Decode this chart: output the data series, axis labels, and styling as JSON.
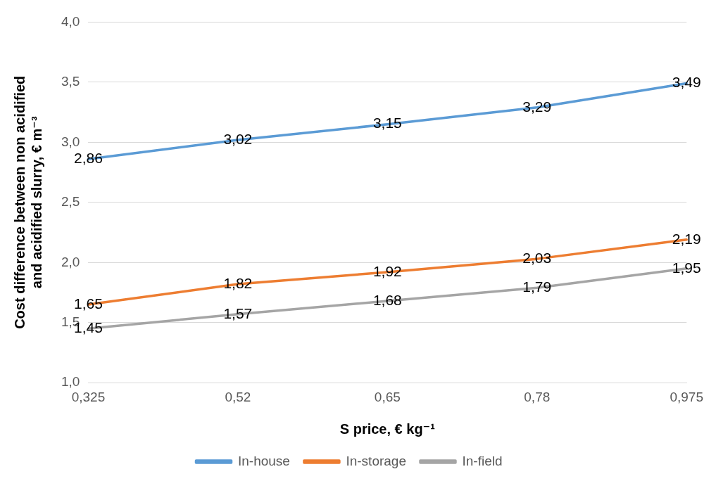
{
  "chart_data": {
    "type": "line",
    "xlabel": "S price, € kg⁻¹",
    "ylabel": "Cost difference between non acidified and acidified slurry, € m⁻³",
    "categories": [
      "0,325",
      "0,52",
      "0,65",
      "0,78",
      "0,975"
    ],
    "series": [
      {
        "name": "In-house",
        "color": "#5b9bd5",
        "values": [
          2.86,
          3.02,
          3.15,
          3.29,
          3.49
        ],
        "value_labels": [
          "2,86",
          "3,02",
          "3,15",
          "3,29",
          "3,49"
        ]
      },
      {
        "name": "In-storage",
        "color": "#ed7d31",
        "values": [
          1.65,
          1.82,
          1.92,
          2.03,
          2.19
        ],
        "value_labels": [
          "1,65",
          "1,82",
          "1,92",
          "2,03",
          "2,19"
        ]
      },
      {
        "name": "In-field",
        "color": "#a5a5a5",
        "values": [
          1.45,
          1.57,
          1.68,
          1.79,
          1.95
        ],
        "value_labels": [
          "1,45",
          "1,57",
          "1,68",
          "1,79",
          "1,95"
        ]
      }
    ],
    "ylim": [
      1.0,
      4.0
    ],
    "yticks": [
      {
        "value": 1.0,
        "label": "1,0"
      },
      {
        "value": 1.5,
        "label": "1,5"
      },
      {
        "value": 2.0,
        "label": "2,0"
      },
      {
        "value": 2.5,
        "label": "2,5"
      },
      {
        "value": 3.0,
        "label": "3,0"
      },
      {
        "value": 3.5,
        "label": "3,5"
      },
      {
        "value": 4.0,
        "label": "4,0"
      }
    ],
    "grid": "y",
    "legend": "bottom",
    "marker": "none",
    "line_style": "solid"
  }
}
